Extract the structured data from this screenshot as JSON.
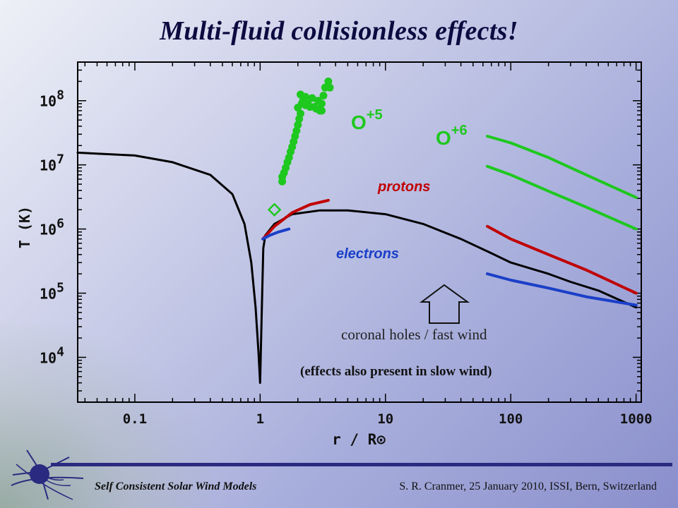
{
  "slide": {
    "title": "Multi-fluid collisionless effects!",
    "footer_left": "Self Consistent Solar Wind Models",
    "footer_right": "S. R. Cranmer,  25 January 2010,  ISSI, Bern, Switzerland"
  },
  "colors": {
    "black": "#000000",
    "protons": "#c00000",
    "electrons": "#1a3fc8",
    "oxygen": "#1ec81e",
    "frame": "#000000"
  },
  "chart_data": {
    "type": "line",
    "title": "",
    "xlabel": "r / R⊙",
    "ylabel": "T (K)",
    "x_scale": "log",
    "y_scale": "log",
    "xlim": [
      0.035,
      1100
    ],
    "ylim": [
      2000,
      400000000
    ],
    "x_ticks": [
      {
        "value": 0.1,
        "label": "0.1"
      },
      {
        "value": 1,
        "label": "1"
      },
      {
        "value": 10,
        "label": "10"
      },
      {
        "value": 100,
        "label": "100"
      },
      {
        "value": 1000,
        "label": "1000"
      }
    ],
    "y_ticks": [
      {
        "value": 10000,
        "base": "10",
        "exp": "4"
      },
      {
        "value": 100000,
        "base": "10",
        "exp": "5"
      },
      {
        "value": 1000000,
        "base": "10",
        "exp": "6"
      },
      {
        "value": 10000000,
        "base": "10",
        "exp": "7"
      },
      {
        "value": 100000000,
        "base": "10",
        "exp": "8"
      }
    ],
    "series": [
      {
        "key": "black",
        "color": "#000000",
        "points": [
          [
            0.035,
            15500000
          ],
          [
            0.1,
            14000000
          ],
          [
            0.2,
            11000000
          ],
          [
            0.4,
            7000000
          ],
          [
            0.6,
            3500000
          ],
          [
            0.75,
            1200000
          ],
          [
            0.85,
            300000
          ],
          [
            0.92,
            60000
          ],
          [
            0.97,
            12000
          ],
          [
            1.0,
            4000
          ],
          [
            1.03,
            50000
          ],
          [
            1.06,
            500000
          ],
          [
            1.1,
            800000
          ],
          [
            1.3,
            1200000
          ],
          [
            1.8,
            1700000
          ],
          [
            3,
            1950000
          ],
          [
            5,
            1950000
          ],
          [
            10,
            1700000
          ],
          [
            20,
            1200000
          ],
          [
            40,
            700000
          ],
          [
            70,
            420000
          ],
          [
            100,
            300000
          ],
          [
            200,
            200000
          ],
          [
            300,
            150000
          ],
          [
            500,
            110000
          ],
          [
            1000,
            60000
          ]
        ]
      },
      {
        "key": "protons-inner",
        "color": "#c00000",
        "points": [
          [
            1.05,
            700000
          ],
          [
            1.3,
            1100000
          ],
          [
            1.8,
            1800000
          ],
          [
            2.5,
            2400000
          ],
          [
            3.5,
            2800000
          ]
        ]
      },
      {
        "key": "electrons-inner",
        "color": "#1a3fc8",
        "points": [
          [
            1.05,
            700000
          ],
          [
            1.2,
            800000
          ],
          [
            1.4,
            900000
          ],
          [
            1.7,
            1000000
          ]
        ]
      },
      {
        "key": "protons-outer",
        "color": "#c00000",
        "points": [
          [
            65,
            1100000
          ],
          [
            100,
            700000
          ],
          [
            200,
            400000
          ],
          [
            400,
            230000
          ],
          [
            1000,
            100000
          ]
        ]
      },
      {
        "key": "electrons-outer",
        "color": "#1a3fc8",
        "points": [
          [
            65,
            200000
          ],
          [
            100,
            160000
          ],
          [
            200,
            120000
          ],
          [
            400,
            88000
          ],
          [
            1000,
            65000
          ]
        ]
      },
      {
        "key": "o6-upper",
        "color": "#1ec81e",
        "points": [
          [
            65,
            28000000
          ],
          [
            100,
            22000000
          ],
          [
            200,
            13000000
          ],
          [
            400,
            7000000
          ],
          [
            1000,
            3100000
          ]
        ]
      },
      {
        "key": "o6-lower",
        "color": "#1ec81e",
        "points": [
          [
            65,
            9500000
          ],
          [
            100,
            7000000
          ],
          [
            200,
            3900000
          ],
          [
            400,
            2200000
          ],
          [
            1000,
            1000000
          ]
        ]
      }
    ],
    "o5_points": [
      [
        1.5,
        5500000
      ],
      [
        1.5,
        6500000
      ],
      [
        1.55,
        7500000
      ],
      [
        1.6,
        9000000
      ],
      [
        1.65,
        11000000
      ],
      [
        1.7,
        13000000
      ],
      [
        1.75,
        16000000
      ],
      [
        1.8,
        19000000
      ],
      [
        1.85,
        23000000
      ],
      [
        1.9,
        28000000
      ],
      [
        1.95,
        34000000
      ],
      [
        2.0,
        42000000
      ],
      [
        2.05,
        52000000
      ],
      [
        2.1,
        63000000
      ],
      [
        2.0,
        78000000
      ],
      [
        2.15,
        90000000
      ],
      [
        2.2,
        100000000
      ],
      [
        2.3,
        115000000
      ],
      [
        2.4,
        90000000
      ],
      [
        2.5,
        80000000
      ],
      [
        2.6,
        110000000
      ],
      [
        2.7,
        80000000
      ],
      [
        2.8,
        75000000
      ],
      [
        2.9,
        100000000
      ],
      [
        3.0,
        70000000
      ],
      [
        3.1,
        90000000
      ],
      [
        3.2,
        120000000
      ],
      [
        3.3,
        160000000
      ],
      [
        3.5,
        200000000
      ],
      [
        3.6,
        160000000
      ],
      [
        3.1,
        70000000
      ],
      [
        2.1,
        125000000
      ],
      [
        2.3,
        85000000
      ]
    ],
    "diamond_point": [
      1.3,
      2000000
    ],
    "annotations": [
      {
        "key": "o5",
        "text": "O",
        "sup": "+5",
        "color": "#1ec81e"
      },
      {
        "key": "o6",
        "text": "O",
        "sup": "+6",
        "color": "#1ec81e"
      },
      {
        "key": "protons",
        "text": "protons",
        "color": "#c00000"
      },
      {
        "key": "electrons",
        "text": "electrons",
        "color": "#1a3fc8"
      },
      {
        "key": "coronal",
        "text": "coronal holes / fast wind",
        "color": "#222222"
      },
      {
        "key": "slow",
        "text": "(effects also present in slow wind)",
        "color": "#111111"
      }
    ]
  }
}
